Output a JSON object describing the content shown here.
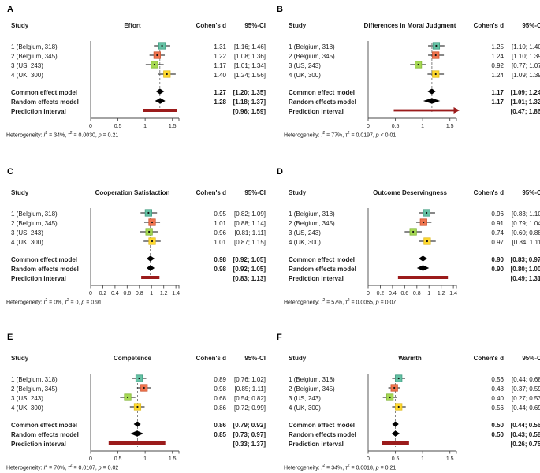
{
  "figure": {
    "background": "#ffffff",
    "columns": {
      "study": "Study",
      "effect": "Cohen's d",
      "ci": "95%-CI"
    },
    "model_labels": {
      "common": "Common effect model",
      "random": "Random effects model",
      "prediction": "Prediction interval"
    },
    "colors": {
      "study_markers": [
        "#66c2a5",
        "#f0754f",
        "#a6d854",
        "#ffd92f"
      ],
      "marker_strokes": [
        "#3f9d81",
        "#cc5330",
        "#82b637",
        "#dfba1e"
      ],
      "diamond": "#000000",
      "prediction_bar": "#9b1b1b",
      "axis": "#4a4a4a",
      "whisker": "#111111",
      "text": "#1a1a1a"
    }
  },
  "chart_data": [
    {
      "type": "forest",
      "panel": "A",
      "title": "Effort",
      "effect_measure": "Cohen's d",
      "studies": [
        {
          "label": "1 (Belgium, 318)",
          "d": 1.31,
          "lo": 1.16,
          "hi": 1.46
        },
        {
          "label": "2 (Belgium, 345)",
          "d": 1.22,
          "lo": 1.08,
          "hi": 1.36
        },
        {
          "label": "3 (US, 243)",
          "d": 1.17,
          "lo": 1.01,
          "hi": 1.34
        },
        {
          "label": "4 (UK, 300)",
          "d": 1.4,
          "lo": 1.24,
          "hi": 1.56
        }
      ],
      "common": {
        "d": 1.27,
        "lo": 1.2,
        "hi": 1.35
      },
      "random": {
        "d": 1.28,
        "lo": 1.18,
        "hi": 1.37
      },
      "prediction": {
        "lo": 0.96,
        "hi": 1.59
      },
      "heterogeneity": "Heterogeneity: I² = 34%, τ² = 0.0030, p = 0.21",
      "x_ticks": [
        0,
        0.5,
        1,
        1.5
      ],
      "xlim": [
        0,
        1.62
      ]
    },
    {
      "type": "forest",
      "panel": "B",
      "title": "Differences in Moral Judgment",
      "effect_measure": "Cohen's d",
      "studies": [
        {
          "label": "1 (Belgium, 318)",
          "d": 1.25,
          "lo": 1.1,
          "hi": 1.4
        },
        {
          "label": "2 (Belgium, 345)",
          "d": 1.24,
          "lo": 1.1,
          "hi": 1.39
        },
        {
          "label": "3 (US, 243)",
          "d": 0.92,
          "lo": 0.77,
          "hi": 1.07
        },
        {
          "label": "4 (UK, 300)",
          "d": 1.24,
          "lo": 1.09,
          "hi": 1.39
        }
      ],
      "common": {
        "d": 1.17,
        "lo": 1.09,
        "hi": 1.24
      },
      "random": {
        "d": 1.17,
        "lo": 1.01,
        "hi": 1.32
      },
      "prediction": {
        "lo": 0.47,
        "hi": 1.86
      },
      "heterogeneity": "Heterogeneity: I² = 77%, τ² = 0.0197, p < 0.01",
      "x_ticks": [
        0,
        0.5,
        1,
        1.5
      ],
      "xlim": [
        0,
        1.62
      ]
    },
    {
      "type": "forest",
      "panel": "C",
      "title": "Cooperation Satisfaction",
      "effect_measure": "Cohen's d",
      "studies": [
        {
          "label": "1 (Belgium, 318)",
          "d": 0.95,
          "lo": 0.82,
          "hi": 1.09
        },
        {
          "label": "2 (Belgium, 345)",
          "d": 1.01,
          "lo": 0.88,
          "hi": 1.14
        },
        {
          "label": "3 (US, 243)",
          "d": 0.96,
          "lo": 0.81,
          "hi": 1.11
        },
        {
          "label": "4 (UK, 300)",
          "d": 1.01,
          "lo": 0.87,
          "hi": 1.15
        }
      ],
      "common": {
        "d": 0.98,
        "lo": 0.92,
        "hi": 1.05
      },
      "random": {
        "d": 0.98,
        "lo": 0.92,
        "hi": 1.05
      },
      "prediction": {
        "lo": 0.83,
        "hi": 1.13
      },
      "heterogeneity": "Heterogeneity: I² = 0%, τ² = 0, p = 0.91",
      "x_ticks": [
        0,
        0.2,
        0.4,
        0.6,
        0.8,
        1,
        1.2,
        1.4
      ],
      "xlim": [
        0,
        1.45
      ]
    },
    {
      "type": "forest",
      "panel": "D",
      "title": "Outcome Deservingness",
      "effect_measure": "Cohen's d",
      "studies": [
        {
          "label": "1 (Belgium, 318)",
          "d": 0.96,
          "lo": 0.83,
          "hi": 1.1
        },
        {
          "label": "2 (Belgium, 345)",
          "d": 0.91,
          "lo": 0.79,
          "hi": 1.04
        },
        {
          "label": "3 (US, 243)",
          "d": 0.74,
          "lo": 0.6,
          "hi": 0.88
        },
        {
          "label": "4 (UK, 300)",
          "d": 0.97,
          "lo": 0.84,
          "hi": 1.11
        }
      ],
      "common": {
        "d": 0.9,
        "lo": 0.83,
        "hi": 0.97
      },
      "random": {
        "d": 0.9,
        "lo": 0.8,
        "hi": 1.0
      },
      "prediction": {
        "lo": 0.49,
        "hi": 1.31
      },
      "heterogeneity": "Heterogeneity: I² = 57%, τ² = 0.0065, p = 0.07",
      "x_ticks": [
        0,
        0.2,
        0.4,
        0.6,
        0.8,
        1,
        1.2,
        1.4
      ],
      "xlim": [
        0,
        1.45
      ]
    },
    {
      "type": "forest",
      "panel": "E",
      "title": "Competence",
      "effect_measure": "Cohen's d",
      "studies": [
        {
          "label": "1 (Belgium, 318)",
          "d": 0.89,
          "lo": 0.76,
          "hi": 1.02
        },
        {
          "label": "2 (Belgium, 345)",
          "d": 0.98,
          "lo": 0.85,
          "hi": 1.11
        },
        {
          "label": "3 (US, 243)",
          "d": 0.68,
          "lo": 0.54,
          "hi": 0.82
        },
        {
          "label": "4 (UK, 300)",
          "d": 0.86,
          "lo": 0.72,
          "hi": 0.99
        }
      ],
      "common": {
        "d": 0.86,
        "lo": 0.79,
        "hi": 0.92
      },
      "random": {
        "d": 0.85,
        "lo": 0.73,
        "hi": 0.97
      },
      "prediction": {
        "lo": 0.33,
        "hi": 1.37
      },
      "heterogeneity": "Heterogeneity: I² = 70%, τ² = 0.0107, p = 0.02",
      "x_ticks": [
        0,
        0.5,
        1,
        1.5
      ],
      "xlim": [
        0,
        1.62
      ]
    },
    {
      "type": "forest",
      "panel": "F",
      "title": "Warmth",
      "effect_measure": "Cohen's d",
      "studies": [
        {
          "label": "1 (Belgium, 318)",
          "d": 0.56,
          "lo": 0.44,
          "hi": 0.68
        },
        {
          "label": "2 (Belgium, 345)",
          "d": 0.48,
          "lo": 0.37,
          "hi": 0.59
        },
        {
          "label": "3 (US, 243)",
          "d": 0.4,
          "lo": 0.27,
          "hi": 0.53
        },
        {
          "label": "4 (UK, 300)",
          "d": 0.56,
          "lo": 0.44,
          "hi": 0.69
        }
      ],
      "common": {
        "d": 0.5,
        "lo": 0.44,
        "hi": 0.56
      },
      "random": {
        "d": 0.5,
        "lo": 0.43,
        "hi": 0.58
      },
      "prediction": {
        "lo": 0.26,
        "hi": 0.75
      },
      "heterogeneity": "Heterogeneity: I² = 34%, τ² = 0.0018, p = 0.21",
      "x_ticks": [
        0,
        0.5,
        1,
        1.5
      ],
      "xlim": [
        0,
        1.62
      ]
    }
  ]
}
